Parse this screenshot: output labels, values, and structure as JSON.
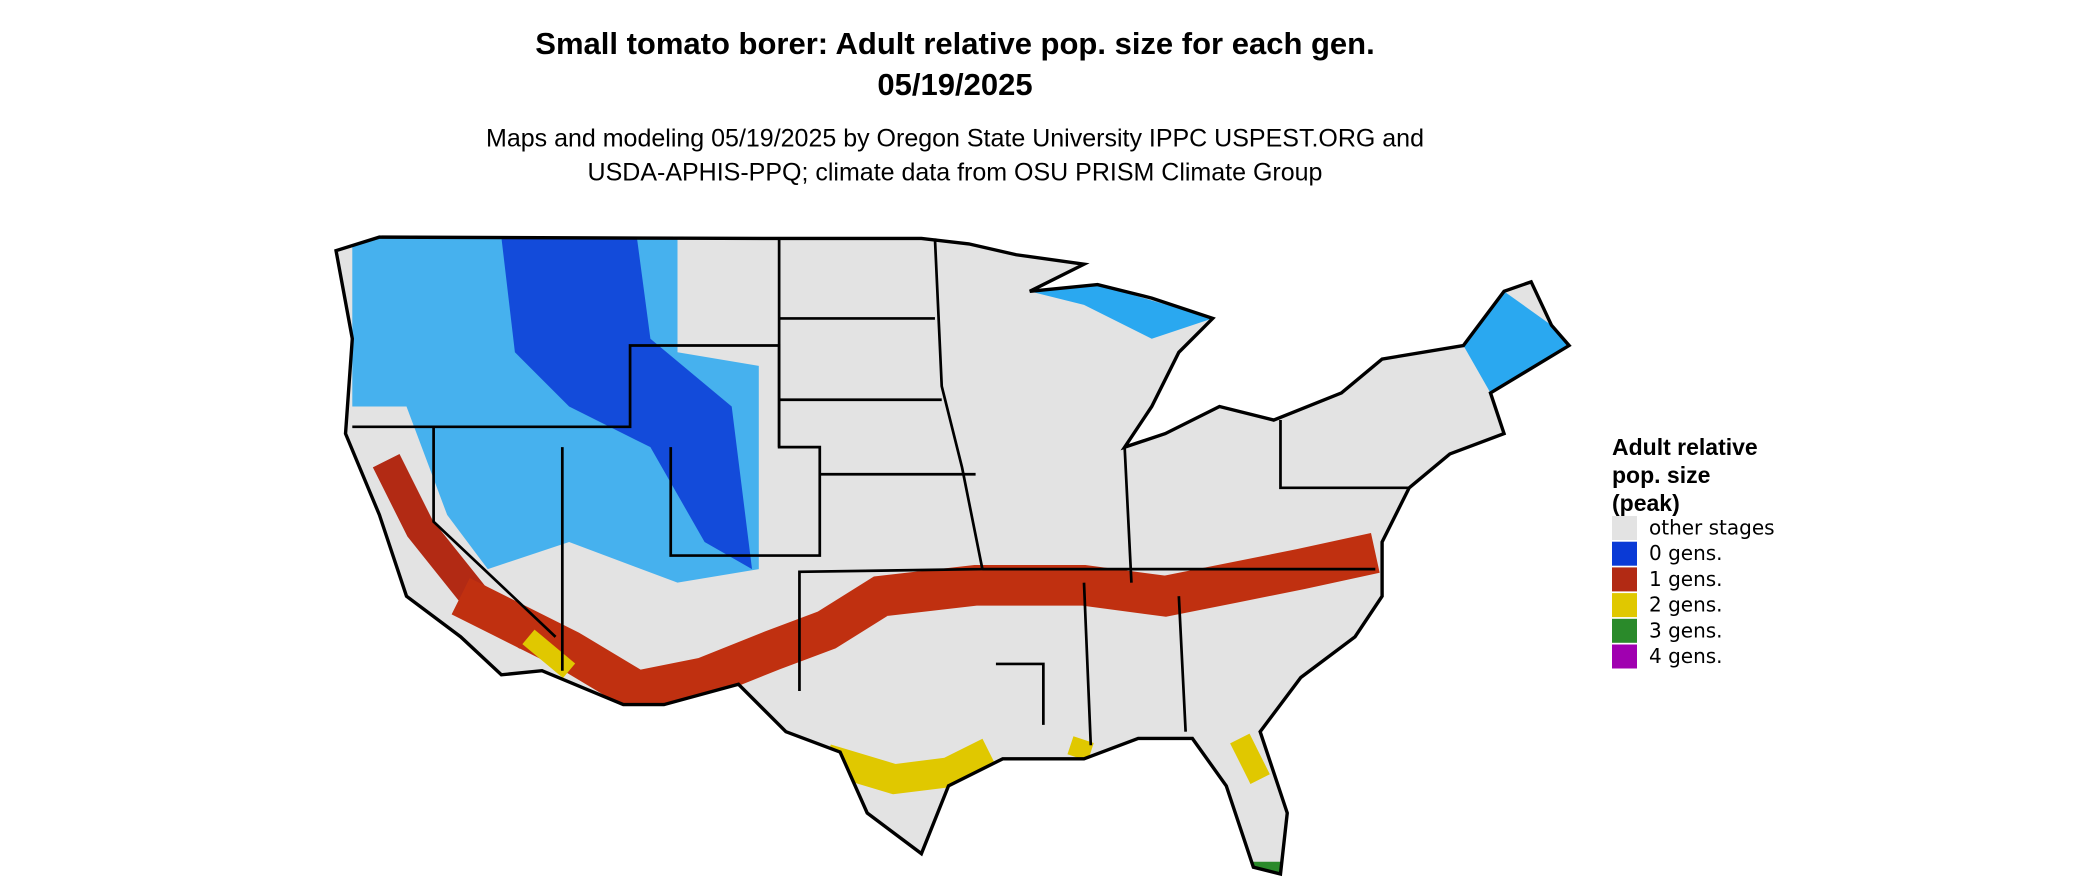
{
  "header": {
    "title": "Small tomato borer: Adult relative pop. size for each gen.",
    "date": "05/19/2025",
    "subtitle": [
      "Maps and modeling 05/19/2025 by Oregon State University IPPC USPEST.ORG and",
      "USDA-APHIS-PPQ; climate data from OSU PRISM Climate Group"
    ]
  },
  "legend": {
    "title": [
      "Adult relative",
      "pop. size",
      "(peak)"
    ],
    "items": [
      {
        "label": "other stages",
        "color": "#e3e3e3"
      },
      {
        "label": "0 gens.",
        "color": "#0a3ad6"
      },
      {
        "label": "1 gens.",
        "color": "#b22a14"
      },
      {
        "label": "2 gens.",
        "color": "#e0c800"
      },
      {
        "label": "3 gens.",
        "color": "#2a8a2a"
      },
      {
        "label": "4 gens.",
        "color": "#a000b0"
      }
    ]
  }
}
